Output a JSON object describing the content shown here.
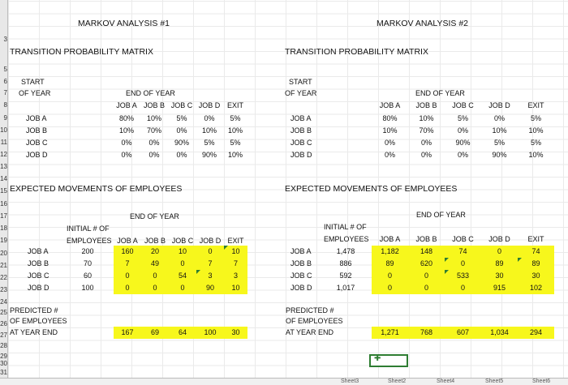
{
  "row_numbers": [
    "3",
    "5",
    "6",
    "7",
    "8",
    "9",
    "10",
    "11",
    "12",
    "13",
    "14",
    "15",
    "16",
    "17",
    "18",
    "19",
    "20",
    "21",
    "22",
    "23",
    "24",
    "25",
    "26",
    "27",
    "28",
    "29",
    "30",
    "31"
  ],
  "left": {
    "title": "MARKOV ANALYSIS #1",
    "tpm_title": "TRANSITION PROBABILITY MATRIX",
    "start_label": "START",
    "of_year_label": "OF YEAR",
    "end_of_year_label": "END OF YEAR",
    "col_headers": [
      "JOB A",
      "JOB B",
      "JOB C",
      "JOB D",
      "EXIT"
    ],
    "row_labels": [
      "JOB A",
      "JOB B",
      "JOB C",
      "JOB D"
    ],
    "matrix": [
      [
        "80%",
        "10%",
        "5%",
        "0%",
        "5%"
      ],
      [
        "10%",
        "70%",
        "0%",
        "10%",
        "10%"
      ],
      [
        "0%",
        "0%",
        "90%",
        "5%",
        "5%"
      ],
      [
        "0%",
        "0%",
        "0%",
        "90%",
        "10%"
      ]
    ],
    "movements_title": "EXPECTED MOVEMENTS OF EMPLOYEES",
    "mv_end_of_year": "END OF YEAR",
    "initial_label_1": "INITIAL # OF",
    "initial_label_2": "EMPLOYEES",
    "mv_col_headers": [
      "JOB A",
      "JOB B",
      "JOB C",
      "JOB D",
      "EXIT"
    ],
    "mv_row_labels": [
      "JOB A",
      "JOB B",
      "JOB C",
      "JOB D"
    ],
    "initial": [
      "200",
      "70",
      "60",
      "100"
    ],
    "movements": [
      [
        "160",
        "20",
        "10",
        "0",
        "10"
      ],
      [
        "7",
        "49",
        "0",
        "7",
        "7"
      ],
      [
        "0",
        "0",
        "54",
        "3",
        "3"
      ],
      [
        "0",
        "0",
        "0",
        "90",
        "10"
      ]
    ],
    "predicted_1": "PREDICTED #",
    "predicted_2": "OF EMPLOYEES",
    "predicted_3": "AT YEAR END",
    "predicted": [
      "167",
      "69",
      "64",
      "100",
      "30"
    ]
  },
  "right": {
    "title": "MARKOV ANALYSIS #2",
    "tpm_title": "TRANSITION PROBABILITY MATRIX",
    "start_label": "START",
    "of_year_label": "OF YEAR",
    "end_of_year_label": "END OF YEAR",
    "col_headers": [
      "JOB A",
      "JOB B",
      "JOB C",
      "JOB D",
      "EXIT"
    ],
    "row_labels": [
      "JOB A",
      "JOB B",
      "JOB C",
      "JOB D"
    ],
    "matrix": [
      [
        "80%",
        "10%",
        "5%",
        "0%",
        "5%"
      ],
      [
        "10%",
        "70%",
        "0%",
        "10%",
        "10%"
      ],
      [
        "0%",
        "0%",
        "90%",
        "5%",
        "5%"
      ],
      [
        "0%",
        "0%",
        "0%",
        "90%",
        "10%"
      ]
    ],
    "movements_title": "EXPECTED MOVEMENTS OF EMPLOYEES",
    "mv_end_of_year": "END OF YEAR",
    "initial_label_1": "INITIAL # OF",
    "initial_label_2": "EMPLOYEES",
    "mv_col_headers": [
      "JOB A",
      "JOB B",
      "JOB C",
      "JOB D",
      "EXIT"
    ],
    "mv_row_labels": [
      "JOB A",
      "JOB B",
      "JOB C",
      "JOB D"
    ],
    "initial": [
      "1,478",
      "886",
      "592",
      "1,017"
    ],
    "movements": [
      [
        "1,182",
        "148",
        "74",
        "0",
        "74"
      ],
      [
        "89",
        "620",
        "0",
        "89",
        "89"
      ],
      [
        "0",
        "0",
        "533",
        "30",
        "30"
      ],
      [
        "0",
        "0",
        "0",
        "915",
        "102"
      ]
    ],
    "predicted_1": "PREDICTED #",
    "predicted_2": "OF EMPLOYEES",
    "predicted_3": "AT YEAR END",
    "predicted": [
      "1,271",
      "768",
      "607",
      "1,034",
      "294"
    ]
  },
  "sheet_tabs": [
    "Sheet3",
    "Sheet2",
    "Sheet4",
    "Sheet5",
    "Sheet6"
  ],
  "colors": {
    "highlight": "#f7f71c",
    "grid": "#d9d9d9",
    "selection": "#2e7d32"
  }
}
